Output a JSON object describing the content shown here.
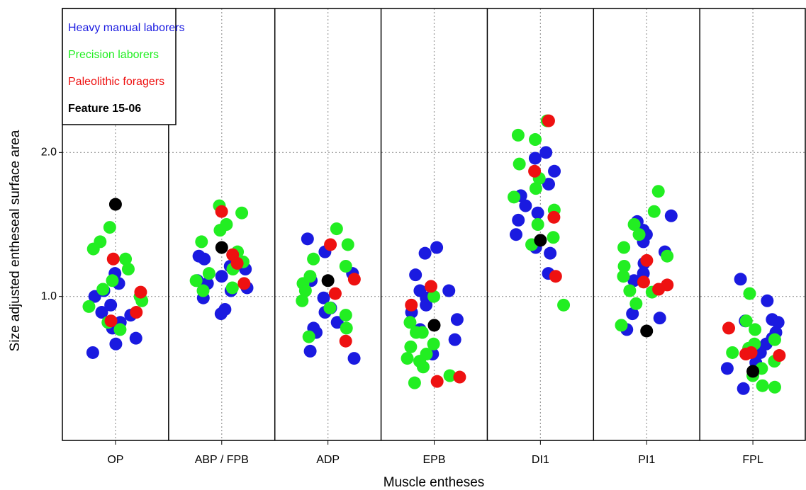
{
  "chart_data": {
    "type": "strip",
    "x_label": "Muscle entheses",
    "y_label": "Size adjusted entheseal surface area",
    "categories": [
      "OP",
      "ABP / FPB",
      "ADP",
      "EPB",
      "DI1",
      "PI1",
      "FPL"
    ],
    "ylim": [
      0,
      3
    ],
    "yticks": [
      {
        "value": 1,
        "label": "1.0"
      },
      {
        "value": 2,
        "label": "2.0"
      }
    ],
    "grid": true,
    "legend": "upper left",
    "series": [
      {
        "name": "Heavy manual laborers",
        "color": "#1a1ae0",
        "values": [
          [
            1.16,
            1.09,
            1.0,
            0.89,
            0.78,
            0.67,
            0.61,
            0.71,
            0.82,
            0.94,
            1.04,
            0.87
          ],
          [
            1.21,
            1.28,
            1.14,
            1.09,
            1.04,
            0.99,
            0.91,
            0.88,
            1.26,
            1.11,
            1.19,
            1.06
          ],
          [
            1.4,
            1.31,
            1.16,
            1.11,
            0.99,
            0.92,
            0.82,
            0.75,
            0.62,
            0.57,
            0.89,
            0.78
          ],
          [
            1.34,
            1.3,
            1.15,
            1.04,
            0.99,
            0.94,
            0.89,
            0.84,
            0.77,
            0.7,
            0.6,
            1.04
          ],
          [
            2.0,
            1.96,
            1.87,
            1.78,
            1.7,
            1.63,
            1.58,
            1.53,
            1.43,
            1.34,
            1.3,
            1.16
          ],
          [
            1.56,
            1.52,
            1.46,
            1.43,
            1.38,
            1.31,
            1.23,
            1.16,
            1.11,
            0.88,
            0.85,
            0.77
          ],
          [
            1.12,
            0.97,
            0.84,
            0.82,
            0.75,
            0.71,
            0.67,
            0.61,
            0.54,
            0.5,
            0.36,
            0.83
          ]
        ]
      },
      {
        "name": "Precision laborers",
        "color": "#22ee22",
        "values": [
          [
            1.38,
            1.48,
            1.26,
            1.19,
            1.05,
            1.0,
            0.93,
            0.82,
            0.77,
            1.11,
            1.33,
            0.97
          ],
          [
            1.63,
            1.58,
            1.5,
            1.46,
            1.38,
            1.31,
            1.24,
            1.16,
            1.11,
            1.04,
            1.19,
            1.06
          ],
          [
            1.47,
            1.36,
            1.26,
            1.21,
            1.14,
            1.09,
            1.04,
            0.97,
            0.92,
            0.87,
            0.78,
            0.72
          ],
          [
            1.0,
            0.82,
            0.75,
            0.67,
            0.65,
            0.6,
            0.55,
            0.51,
            0.45,
            0.4,
            0.75,
            0.57
          ],
          [
            2.22,
            2.12,
            2.09,
            1.92,
            1.82,
            1.75,
            1.69,
            1.6,
            1.5,
            1.41,
            1.36,
            0.94
          ],
          [
            1.73,
            1.59,
            1.5,
            1.43,
            1.34,
            1.28,
            1.21,
            1.14,
            1.04,
            0.95,
            0.8,
            1.03
          ],
          [
            1.02,
            0.83,
            0.77,
            0.7,
            0.67,
            0.64,
            0.61,
            0.55,
            0.5,
            0.45,
            0.37,
            0.38
          ]
        ]
      },
      {
        "name": "Paleolithic foragers",
        "color": "#ee1111",
        "values": [
          [
            1.26,
            1.03,
            0.89,
            0.83
          ],
          [
            1.59,
            1.29,
            1.23,
            1.09
          ],
          [
            1.36,
            1.12,
            1.02,
            0.69
          ],
          [
            1.07,
            0.94,
            0.44,
            0.41
          ],
          [
            2.22,
            1.87,
            1.55,
            1.14
          ],
          [
            1.25,
            1.1,
            1.08,
            1.05
          ],
          [
            0.78,
            0.6,
            0.61,
            0.59
          ]
        ]
      },
      {
        "name": "Feature 15-06",
        "color": "#000000",
        "values": [
          [
            1.64
          ],
          [
            1.34
          ],
          [
            1.11
          ],
          [
            0.8
          ],
          [
            1.39
          ],
          [
            0.76
          ],
          [
            0.48
          ]
        ]
      }
    ]
  }
}
